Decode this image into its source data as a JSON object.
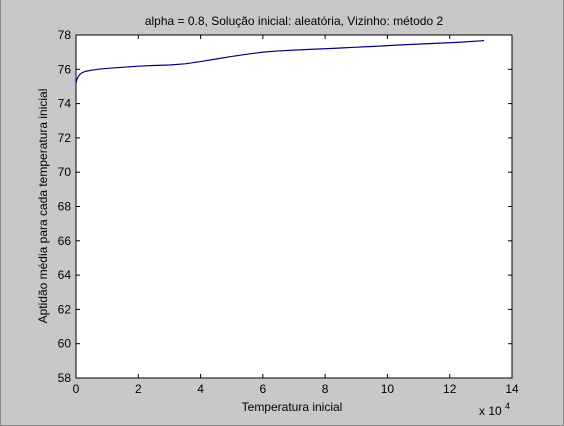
{
  "chart_data": {
    "type": "line",
    "title": "alpha = 0.8, Solução inicial: aleatória, Vizinho: método 2",
    "xlabel": "Temperatura inicial",
    "ylabel": "Aptidão média para cada temperatura inicial",
    "x_multiplier_base": "x 10",
    "x_multiplier_exp": "4",
    "xlim": [
      0,
      14
    ],
    "ylim": [
      58,
      78
    ],
    "xticks": [
      0,
      2,
      4,
      6,
      8,
      10,
      12,
      14
    ],
    "yticks": [
      58,
      60,
      62,
      64,
      66,
      68,
      70,
      72,
      74,
      76,
      78
    ],
    "grid": false,
    "line_color": "#00007f",
    "series": [
      {
        "x": [
          0,
          0.02,
          0.05,
          0.1,
          0.15,
          0.2,
          0.3,
          0.5,
          0.8,
          1.2,
          1.6,
          2.0,
          2.5,
          3.0,
          3.5,
          4.0,
          4.5,
          5.0,
          5.5,
          6.0,
          6.5,
          7.0,
          7.5,
          8.0,
          8.5,
          9.0,
          9.5,
          10.0,
          10.5,
          11.0,
          11.5,
          12.0,
          12.5,
          13.0,
          13.1
        ],
        "y": [
          75.2,
          75.35,
          75.5,
          75.65,
          75.75,
          75.8,
          75.88,
          75.95,
          76.02,
          76.08,
          76.13,
          76.18,
          76.22,
          76.25,
          76.32,
          76.45,
          76.6,
          76.75,
          76.88,
          77.0,
          77.07,
          77.12,
          77.16,
          77.2,
          77.24,
          77.29,
          77.33,
          77.38,
          77.43,
          77.47,
          77.51,
          77.55,
          77.6,
          77.66,
          77.68
        ]
      }
    ]
  }
}
